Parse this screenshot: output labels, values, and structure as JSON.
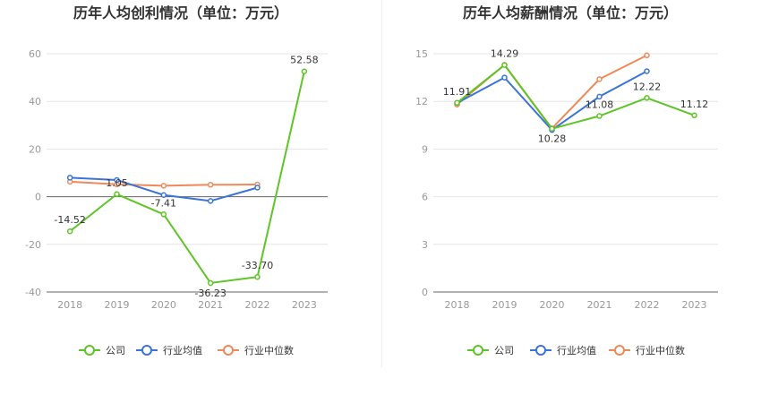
{
  "chart_data": [
    {
      "type": "line",
      "title": "历年人均创利情况（单位：万元）",
      "categories": [
        "2018",
        "2019",
        "2020",
        "2021",
        "2022",
        "2023"
      ],
      "ylim": [
        -40,
        60
      ],
      "yticks": [
        -40,
        -20,
        0,
        20,
        40,
        60
      ],
      "grid": true,
      "legend_position": "bottom",
      "series": [
        {
          "name": "公司",
          "color": "#5fc427",
          "values": [
            -14.52,
            1.05,
            -7.41,
            -36.23,
            -33.7,
            52.58
          ],
          "labels": [
            "-14.52",
            "1.05",
            "-7.41",
            "-36.23",
            "-33.70",
            "52.58"
          ]
        },
        {
          "name": "行业均值",
          "color": "#3b74d6",
          "values": [
            8.0,
            7.0,
            0.7,
            -1.8,
            3.8,
            null
          ],
          "labels": null
        },
        {
          "name": "行业中位数",
          "color": "#ee8a5a",
          "values": [
            6.3,
            5.2,
            4.6,
            5.0,
            5.1,
            null
          ],
          "labels": null
        }
      ]
    },
    {
      "type": "line",
      "title": "历年人均薪酬情况（单位：万元）",
      "categories": [
        "2018",
        "2019",
        "2020",
        "2021",
        "2022",
        "2023"
      ],
      "ylim": [
        0,
        15
      ],
      "yticks": [
        0,
        3,
        6,
        9,
        12,
        15
      ],
      "grid": true,
      "legend_position": "bottom",
      "series": [
        {
          "name": "公司",
          "color": "#5fc427",
          "values": [
            11.91,
            14.29,
            10.28,
            11.08,
            12.22,
            11.12
          ],
          "labels": [
            "11.91",
            "14.29",
            "10.28",
            "11.08",
            "12.22",
            "11.12"
          ]
        },
        {
          "name": "行业均值",
          "color": "#3b74d6",
          "values": [
            11.9,
            13.5,
            10.2,
            12.3,
            13.9,
            null
          ],
          "labels": null
        },
        {
          "name": "行业中位数",
          "color": "#ee8a5a",
          "values": [
            11.8,
            14.3,
            10.3,
            13.4,
            14.9,
            null
          ],
          "labels": null
        }
      ]
    }
  ]
}
